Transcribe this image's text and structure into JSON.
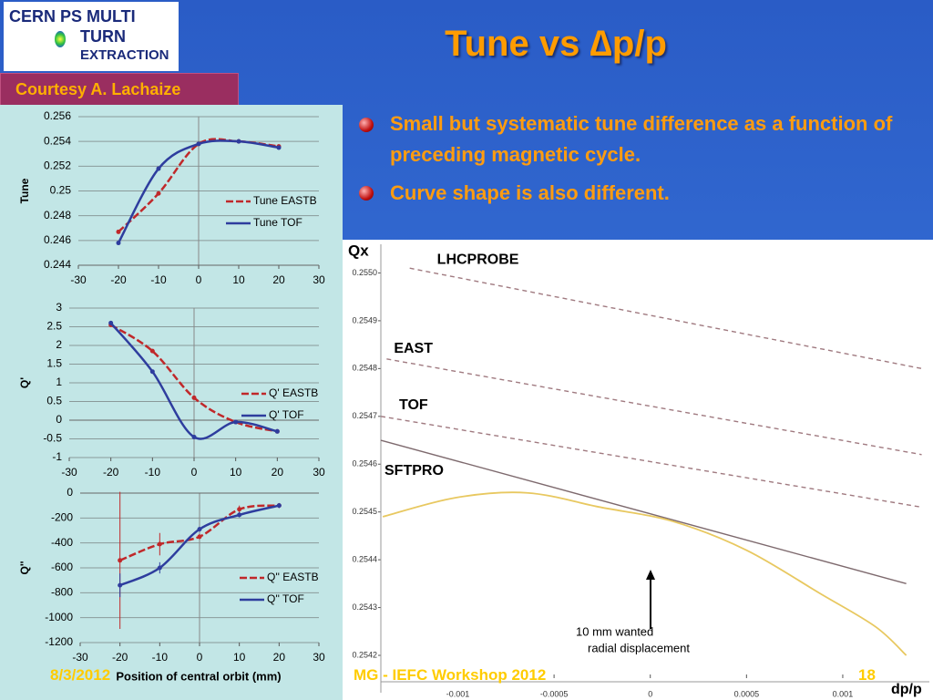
{
  "logo": {
    "lines": [
      "CERN PS MULTI",
      "TURN",
      "EXTRACTION"
    ]
  },
  "title": "Tune vs ∆p/p",
  "credit": "Courtesy A. Lachaize",
  "bullets": [
    "Small but systematic tune difference as a function of preceding magnetic cycle.",
    "Curve shape is also different."
  ],
  "footer": {
    "date": "8/3/2012",
    "event": "MG - IEFC Workshop 2012",
    "page": "18"
  },
  "chart_data": [
    {
      "type": "line",
      "ylabel": "Tune",
      "x": [
        -20,
        -10,
        0,
        10,
        20
      ],
      "xlim": [
        -30,
        30
      ],
      "xticks": [
        -30,
        -20,
        -10,
        0,
        10,
        20,
        30
      ],
      "ylim": [
        0.244,
        0.256
      ],
      "yticks": [
        0.244,
        0.246,
        0.248,
        0.25,
        0.252,
        0.254,
        0.256
      ],
      "grid": true,
      "series": [
        {
          "name": "Tune EASTB",
          "color": "#c0282a",
          "line_style": "dashed",
          "values": [
            0.2467,
            0.2498,
            0.2538,
            0.254,
            0.2536
          ]
        },
        {
          "name": "Tune TOF",
          "color": "#2e3d9e",
          "line_style": "solid",
          "values": [
            0.2458,
            0.2518,
            0.2538,
            0.254,
            0.2535
          ]
        }
      ]
    },
    {
      "type": "line",
      "ylabel": "Q'",
      "x": [
        -20,
        -10,
        0,
        10,
        20
      ],
      "xlim": [
        -30,
        30
      ],
      "xticks": [
        -30,
        -20,
        -10,
        0,
        10,
        20,
        30
      ],
      "ylim": [
        -1,
        3
      ],
      "yticks": [
        -1,
        -0.5,
        0,
        0.5,
        1,
        1.5,
        2,
        2.5,
        3
      ],
      "grid": true,
      "series": [
        {
          "name": "Q' EASTB",
          "color": "#c0282a",
          "line_style": "dashed",
          "values": [
            2.55,
            1.85,
            0.6,
            -0.05,
            -0.3
          ]
        },
        {
          "name": "Q' TOF",
          "color": "#2e3d9e",
          "line_style": "solid",
          "values": [
            2.6,
            1.3,
            -0.45,
            -0.05,
            -0.3
          ]
        }
      ]
    },
    {
      "type": "line",
      "ylabel": "Q''",
      "xlabel": "Position of central orbit (mm)",
      "x": [
        -20,
        -10,
        0,
        10,
        20
      ],
      "xlim": [
        -30,
        30
      ],
      "xticks": [
        -30,
        -20,
        -10,
        0,
        10,
        20,
        30
      ],
      "ylim": [
        -1200,
        0
      ],
      "yticks": [
        -1200,
        -1000,
        -800,
        -600,
        -400,
        -200,
        0
      ],
      "grid": true,
      "series": [
        {
          "name": "Q'' EASTB",
          "color": "#c0282a",
          "line_style": "dashed",
          "values": [
            -540,
            -410,
            -350,
            -130,
            -100
          ],
          "errors": [
            550,
            90,
            20,
            30,
            20
          ]
        },
        {
          "name": "Q'' TOF",
          "color": "#2e3d9e",
          "line_style": "solid",
          "values": [
            -740,
            -600,
            -290,
            -175,
            -100
          ],
          "errors": [
            95,
            45,
            20,
            20,
            20
          ]
        }
      ]
    },
    {
      "type": "line",
      "ylabel": "Qx",
      "xlabel": "dp/p",
      "annotation": [
        "10 mm wanted",
        "radial displacement"
      ],
      "xlim": [
        -0.0014,
        0.00145
      ],
      "xticks": [
        -0.001,
        -0.0005,
        0,
        0.0005,
        0.001
      ],
      "ylim": [
        0.25416,
        0.25506
      ],
      "yticks": [
        {
          "value": 0.255,
          "label": "0.2550"
        },
        0.2549,
        0.2548,
        0.2547,
        0.2546,
        0.2545,
        0.2544,
        0.2543,
        0.2542
      ],
      "grid": false,
      "series": [
        {
          "name": "LHCPROBE",
          "color": "#a07a80",
          "line_style": "dashed",
          "x": [
            -0.00125,
            0.00141
          ],
          "values": [
            0.25501,
            0.2548
          ]
        },
        {
          "name": "EAST",
          "color": "#a07a80",
          "line_style": "dashed",
          "x": [
            -0.00137,
            0.00141
          ],
          "values": [
            0.25482,
            0.25462
          ]
        },
        {
          "name": "TOF",
          "color": "#a07a80",
          "line_style": "dashed",
          "x": [
            -0.0014,
            0.00141
          ],
          "values": [
            0.2547,
            0.25451
          ]
        },
        {
          "name": "SFTPRO",
          "color": "#7e6a6e",
          "line_style": "solid",
          "x": [
            -0.0014,
            0.00133
          ],
          "values": [
            0.25465,
            0.25435
          ]
        },
        {
          "color": "#e8c860",
          "line_style": "solid",
          "x": [
            -0.00139,
            -0.00101,
            -0.00064,
            -0.00026,
            0.00012,
            0.0005,
            0.00088,
            0.00117,
            0.00133
          ],
          "values": [
            0.25449,
            0.25453,
            0.25454,
            0.25451,
            0.25448,
            0.25442,
            0.25433,
            0.25426,
            0.2542
          ]
        }
      ]
    }
  ]
}
